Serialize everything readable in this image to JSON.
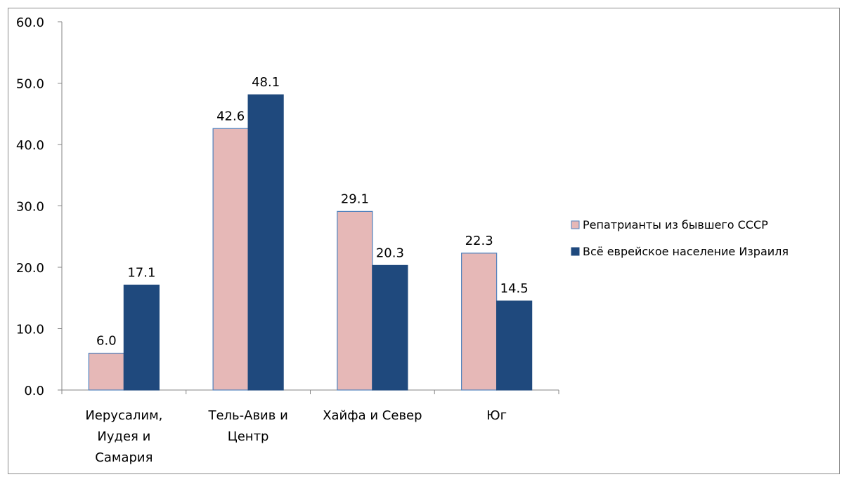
{
  "chart_data": {
    "type": "bar",
    "title": "",
    "xlabel": "",
    "ylabel": "",
    "ylim": [
      0,
      60
    ],
    "ytick_labels": [
      "0.0",
      "10.0",
      "20.0",
      "30.0",
      "40.0",
      "50.0",
      "60.0"
    ],
    "categories": [
      [
        "Иерусалим,",
        "Иудея и",
        "Самария"
      ],
      [
        "Тель-Авив и",
        "Центр"
      ],
      [
        "Хайфа и Север"
      ],
      [
        "Юг"
      ]
    ],
    "series": [
      {
        "name": "Репатрианты из бывшего СССР",
        "color": "#e6b8b7",
        "border": "#4f81bd",
        "values": [
          6.0,
          42.6,
          29.1,
          22.3
        ],
        "labels": [
          "6.0",
          "42.6",
          "29.1",
          "22.3"
        ]
      },
      {
        "name": "Всё еврейское население Израиля",
        "color": "#1f497d",
        "border": "#1f497d",
        "values": [
          17.1,
          48.1,
          20.3,
          14.5
        ],
        "labels": [
          "17.1",
          "48.1",
          "20.3",
          "14.5"
        ]
      }
    ],
    "grid": false,
    "legend": "right"
  }
}
